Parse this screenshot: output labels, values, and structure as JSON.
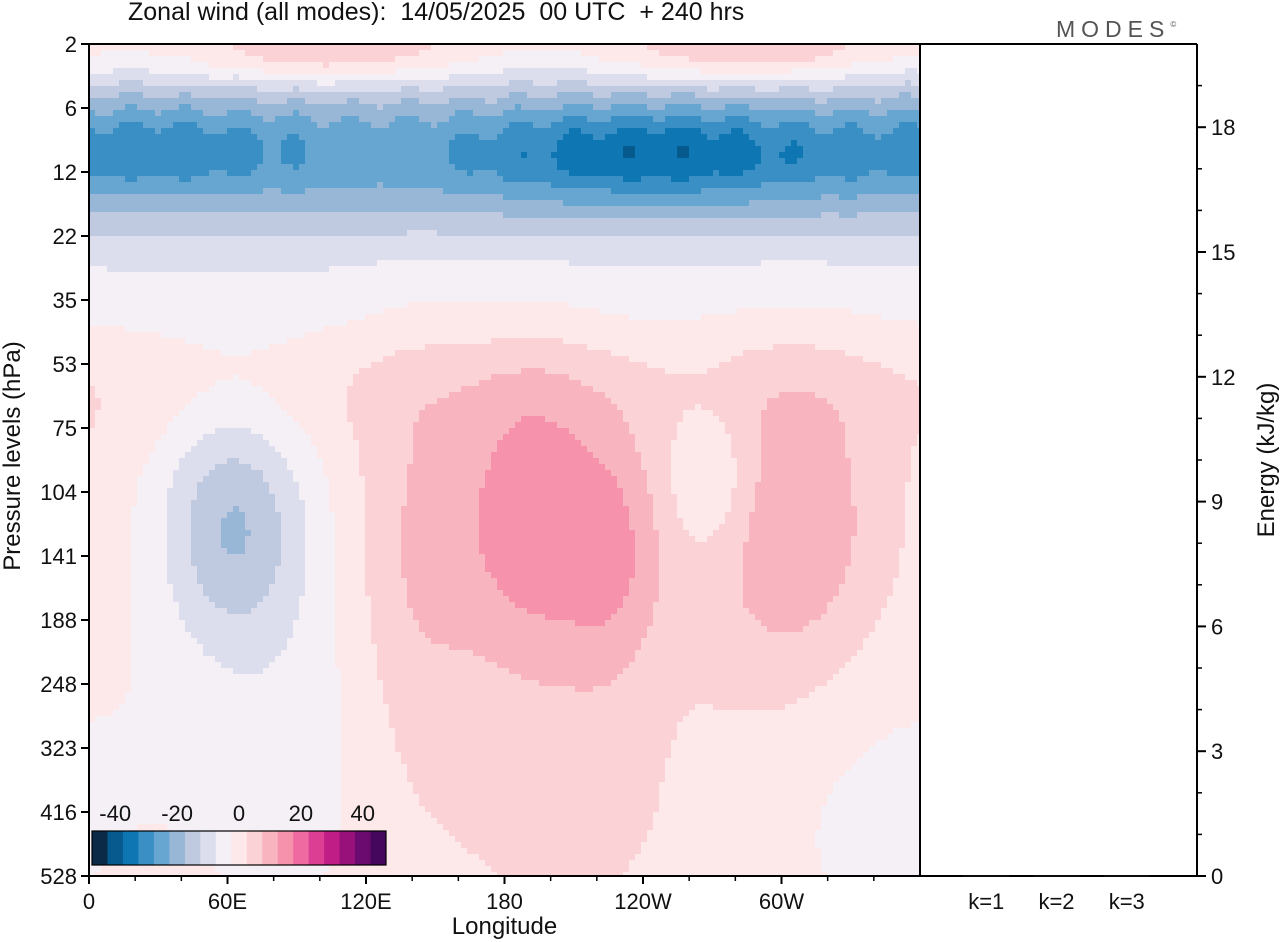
{
  "title": "Zonal wind (all modes):  14/05/2025  00 UTC  + 240 hrs",
  "brand": "MODES",
  "brand_mark": "©",
  "chart_data": [
    {
      "type": "heatmap",
      "variable": "Zonal wind",
      "xlabel": "Longitude",
      "ylabel": "Pressure levels (hPa)",
      "x_ticks": [
        "0",
        "60E",
        "120E",
        "180",
        "120W",
        "60W"
      ],
      "x_tick_degrees": [
        0,
        60,
        120,
        180,
        240,
        300
      ],
      "x_range": [
        0,
        360
      ],
      "y_ticks": [
        2,
        6,
        12,
        22,
        35,
        53,
        75,
        104,
        141,
        188,
        248,
        323,
        416,
        528
      ],
      "y_scale": "level-index (top 2 hPa, bottom 528 hPa)",
      "colorbar": {
        "tick_labels": [
          "-40",
          "-20",
          "0",
          "20",
          "40"
        ],
        "tick_values": [
          -40,
          -20,
          0,
          20,
          40
        ],
        "levels": [
          -45,
          -40,
          -35,
          -30,
          -25,
          -20,
          -15,
          -10,
          -5,
          0,
          5,
          10,
          15,
          20,
          25,
          30,
          35,
          40,
          45
        ],
        "colors": [
          "#0b2a48",
          "#075a8e",
          "#0e76b3",
          "#3a8fc4",
          "#66a6d0",
          "#98b6d6",
          "#bfc9e0",
          "#dcdeed",
          "#f4f0f6",
          "#fde9ea",
          "#fbd2d6",
          "#f8b5c0",
          "#f692ac",
          "#ef6aa0",
          "#dc3e93",
          "#c01d86",
          "#98107a",
          "#6b0a6f",
          "#45065e"
        ]
      },
      "features": [
        {
          "description": "stratospheric easterly jet",
          "level_range_hPa": [
            6,
            22
          ],
          "min_wind": -40
        },
        {
          "description": "upper westerlies",
          "level_range_hPa": [
            2,
            5
          ],
          "max_wind": 12
        },
        {
          "description": "westerly maximum near 180",
          "longitude": 190,
          "level_hPa": 120,
          "max_wind": 18
        },
        {
          "description": "easterly core near 60E",
          "longitude": 65,
          "level_hPa": 115,
          "min_wind": -18
        }
      ]
    },
    {
      "type": "bar",
      "ylabel": "Energy (kJ/kg)",
      "categories": [
        "k=1",
        "k=2",
        "k=3"
      ],
      "values": [
        0.02,
        0.02,
        0.02
      ],
      "ylim": [
        0,
        20
      ],
      "y_ticks": [
        0,
        3,
        6,
        9,
        12,
        15,
        18
      ]
    }
  ]
}
